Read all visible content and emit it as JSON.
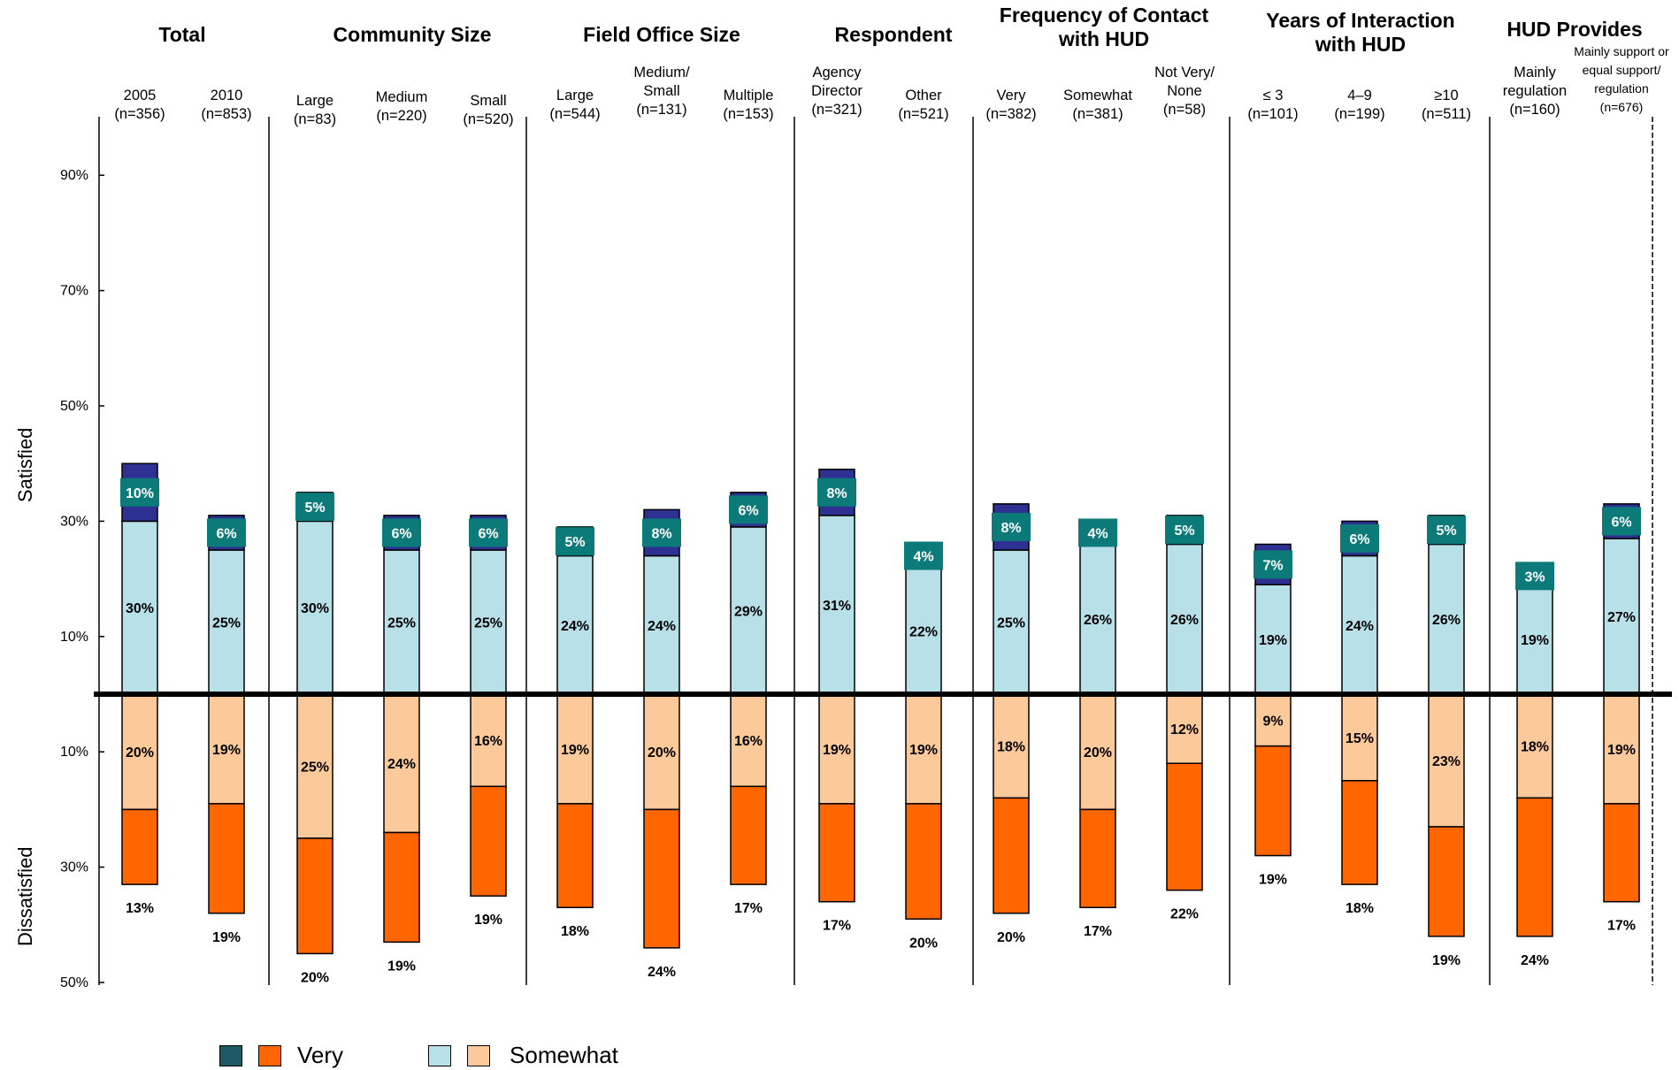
{
  "colors": {
    "very_satisfied": "#2e3192",
    "somewhat_satisfied": "#b8e0e8",
    "very_dissatisfied": "#ff6600",
    "somewhat_dissatisfied": "#fcc99a",
    "label_box": "#0d7a7a"
  },
  "side_labels": {
    "satisfied": "Satisfied",
    "dissatisfied": "Dissatisfied"
  },
  "legend": {
    "very": "Very",
    "somewhat": "Somewhat"
  },
  "chart_data": {
    "type": "bar",
    "stacking": "diverging",
    "y_ticks_above": [
      "90%",
      "70%",
      "50%",
      "30%",
      "10%"
    ],
    "y_ticks_below": [
      "10%",
      "30%",
      "50%"
    ],
    "ylim_satisfied": [
      0,
      95
    ],
    "ylim_dissatisfied": [
      0,
      50
    ],
    "groups": [
      {
        "title": "Total",
        "columns": [
          {
            "label": [
              "2005",
              "(n=356)"
            ],
            "very_sat": 10,
            "somewhat_sat": 30,
            "somewhat_dis": 20,
            "very_dis": 13
          },
          {
            "label": [
              "2010",
              "(n=853)"
            ],
            "very_sat": 6,
            "somewhat_sat": 25,
            "somewhat_dis": 19,
            "very_dis": 19
          }
        ]
      },
      {
        "title": "Community Size",
        "columns": [
          {
            "label": [
              "Large",
              "(n=83)"
            ],
            "very_sat": 5,
            "somewhat_sat": 30,
            "somewhat_dis": 25,
            "very_dis": 20
          },
          {
            "label": [
              "Medium",
              "(n=220)"
            ],
            "very_sat": 6,
            "somewhat_sat": 25,
            "somewhat_dis": 24,
            "very_dis": 19
          },
          {
            "label": [
              "Small",
              "(n=520)"
            ],
            "very_sat": 6,
            "somewhat_sat": 25,
            "somewhat_dis": 16,
            "very_dis": 19
          }
        ]
      },
      {
        "title": "Field Office Size",
        "columns": [
          {
            "label": [
              "Large",
              "(n=544)"
            ],
            "very_sat": 5,
            "somewhat_sat": 24,
            "somewhat_dis": 19,
            "very_dis": 18
          },
          {
            "label": [
              "Medium/",
              "Small",
              "(n=131)"
            ],
            "very_sat": 8,
            "somewhat_sat": 24,
            "somewhat_dis": 20,
            "very_dis": 24
          },
          {
            "label": [
              "Multiple",
              "(n=153)"
            ],
            "very_sat": 6,
            "somewhat_sat": 29,
            "somewhat_dis": 16,
            "very_dis": 17
          }
        ]
      },
      {
        "title": "Respondent",
        "columns": [
          {
            "label": [
              "Agency",
              "Director",
              "(n=321)"
            ],
            "very_sat": 8,
            "somewhat_sat": 31,
            "somewhat_dis": 19,
            "very_dis": 17
          },
          {
            "label": [
              "Other",
              "(n=521)"
            ],
            "very_sat": 4,
            "somewhat_sat": 22,
            "somewhat_dis": 19,
            "very_dis": 20
          }
        ]
      },
      {
        "title": "Frequency of Contact with HUD",
        "columns": [
          {
            "label": [
              "Very",
              "(n=382)"
            ],
            "very_sat": 8,
            "somewhat_sat": 25,
            "somewhat_dis": 18,
            "very_dis": 20
          },
          {
            "label": [
              "Somewhat",
              "(n=381)"
            ],
            "very_sat": 4,
            "somewhat_sat": 26,
            "somewhat_dis": 20,
            "very_dis": 17
          },
          {
            "label": [
              "Not Very/",
              "None",
              "(n=58)"
            ],
            "very_sat": 5,
            "somewhat_sat": 26,
            "somewhat_dis": 12,
            "very_dis": 22
          }
        ]
      },
      {
        "title": "Years of Interaction with HUD",
        "columns": [
          {
            "label": [
              "≤ 3",
              "(n=101)"
            ],
            "very_sat": 7,
            "somewhat_sat": 19,
            "somewhat_dis": 9,
            "very_dis": 19
          },
          {
            "label": [
              "4–9",
              "(n=199)"
            ],
            "very_sat": 6,
            "somewhat_sat": 24,
            "somewhat_dis": 15,
            "very_dis": 18
          },
          {
            "label": [
              "≥10",
              "(n=511)"
            ],
            "very_sat": 5,
            "somewhat_sat": 26,
            "somewhat_dis": 23,
            "very_dis": 19
          }
        ]
      },
      {
        "title": "HUD Provides",
        "columns": [
          {
            "label": [
              "Mainly",
              "regulation",
              "(n=160)"
            ],
            "very_sat": 3,
            "somewhat_sat": 19,
            "somewhat_dis": 18,
            "very_dis": 24
          },
          {
            "label": [
              "Mainly support or",
              "equal support/",
              "regulation",
              "(n=676)"
            ],
            "very_sat": 6,
            "somewhat_sat": 27,
            "somewhat_dis": 19,
            "very_dis": 17
          }
        ]
      }
    ]
  }
}
